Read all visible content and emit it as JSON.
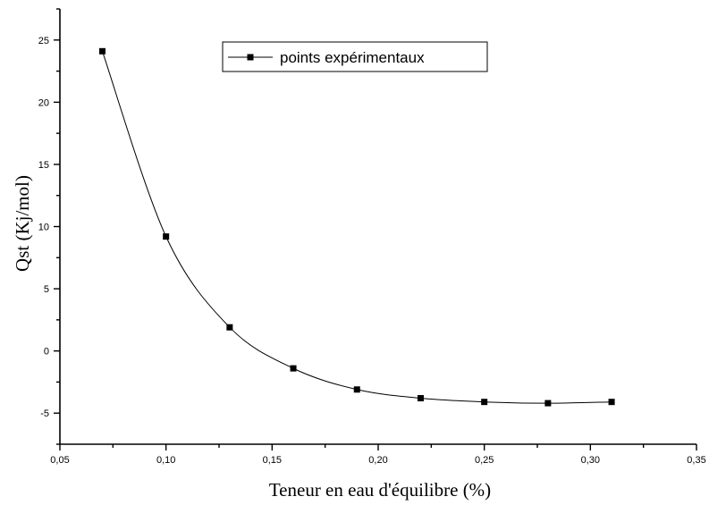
{
  "chart_data": {
    "type": "line",
    "title": "",
    "xlabel": "Teneur en eau d'équilibre (%)",
    "ylabel": "Qst (Kj/mol)",
    "xlim": [
      0.05,
      0.35
    ],
    "ylim": [
      -7.5,
      27.5
    ],
    "x_ticks": [
      0.05,
      0.1,
      0.15,
      0.2,
      0.25,
      0.3,
      0.35
    ],
    "x_tick_labels": [
      "0,05",
      "0,10",
      "0,15",
      "0,20",
      "0,25",
      "0,30",
      "0,35"
    ],
    "y_ticks": [
      -5,
      0,
      5,
      10,
      15,
      20,
      25
    ],
    "y_tick_labels": [
      "-5",
      "0",
      "5",
      "10",
      "15",
      "20",
      "25"
    ],
    "grid": false,
    "legend_position": "top-center",
    "series": [
      {
        "name": "points expérimentaux",
        "marker": "square",
        "color": "#000000",
        "x": [
          0.07,
          0.1,
          0.13,
          0.16,
          0.19,
          0.22,
          0.25,
          0.28,
          0.31
        ],
        "y": [
          24.1,
          9.2,
          1.9,
          -1.4,
          -3.1,
          -3.8,
          -4.1,
          -4.2,
          -4.1
        ]
      }
    ]
  }
}
